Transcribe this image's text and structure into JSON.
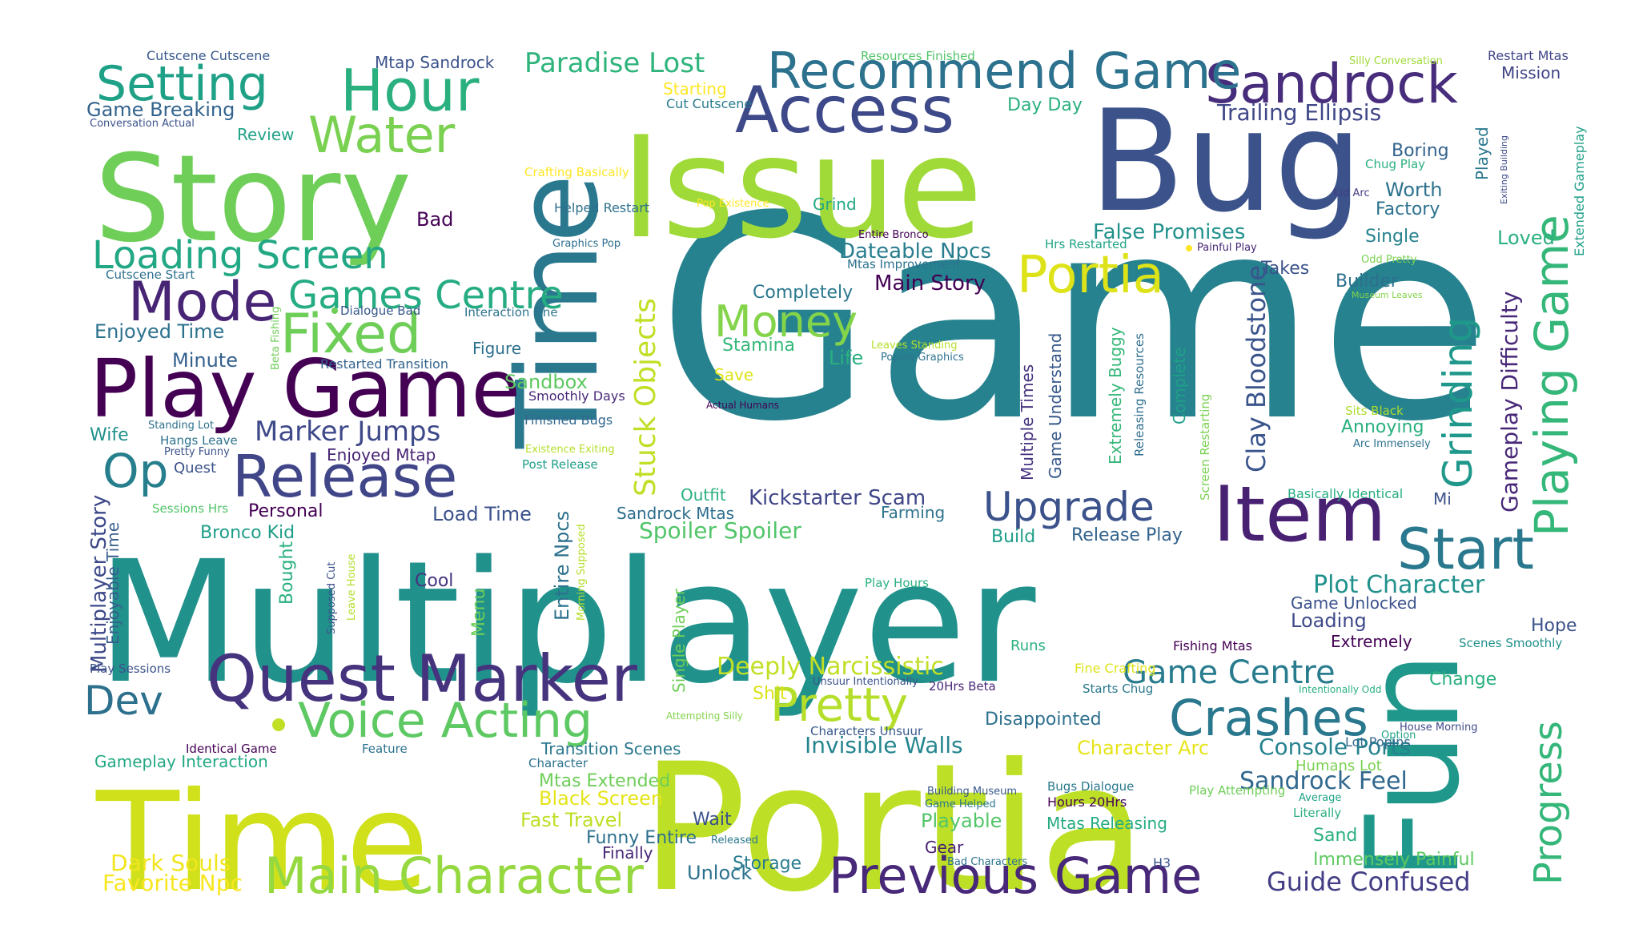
{
  "words": [
    {
      "t": "Game",
      "c": "#26828e"
    },
    {
      "t": "Multiplayer",
      "c": "#21918c"
    },
    {
      "t": "Time",
      "c": "#d0e11c"
    },
    {
      "t": "Portia",
      "c": "#bddf26"
    },
    {
      "t": "Story",
      "c": "#6ece58"
    },
    {
      "t": "Issue",
      "c": "#a0da39"
    },
    {
      "t": "Bug",
      "c": "#3b528b"
    },
    {
      "t": "Time",
      "c": "#2a788e"
    },
    {
      "t": "Fun",
      "c": "#1f988b"
    },
    {
      "t": "Play Game",
      "c": "#440154"
    },
    {
      "t": "Item",
      "c": "#482173"
    },
    {
      "t": "Quest Marker",
      "c": "#46337e"
    },
    {
      "t": "Access",
      "c": "#3e4989"
    },
    {
      "t": "Sandrock",
      "c": "#472d7b"
    },
    {
      "t": "Recommend Game",
      "c": "#2c728e"
    },
    {
      "t": "Hour",
      "c": "#2ab07f"
    },
    {
      "t": "Setting",
      "c": "#1fa187"
    },
    {
      "t": "Water",
      "c": "#7ad151"
    },
    {
      "t": "Mode",
      "c": "#482475"
    },
    {
      "t": "Fixed",
      "c": "#6ece58"
    },
    {
      "t": "Loading Screen",
      "c": "#22a884"
    },
    {
      "t": "Games Centre",
      "c": "#25ac82"
    },
    {
      "t": "Release",
      "c": "#404688"
    },
    {
      "t": "Op",
      "c": "#277f8e"
    },
    {
      "t": "Dev",
      "c": "#2d708e"
    },
    {
      "t": "Voice Acting",
      "c": "#5ec962"
    },
    {
      "t": "Main Character",
      "c": "#95d840"
    },
    {
      "t": "Previous Game",
      "c": "#482878"
    },
    {
      "t": "Crashes",
      "c": "#2a788e"
    },
    {
      "t": "Pretty",
      "c": "#b5de2b"
    },
    {
      "t": "Portia",
      "c": "#dde318"
    },
    {
      "t": "Money",
      "c": "#84d44b"
    },
    {
      "t": "Upgrade",
      "c": "#3b528b"
    },
    {
      "t": "Start",
      "c": "#2a788e"
    },
    {
      "t": "Grinding",
      "c": "#1f988b"
    },
    {
      "t": "Playing Game",
      "c": "#35b779"
    },
    {
      "t": "Progress",
      "c": "#35b779"
    },
    {
      "t": "Game Centre",
      "c": "#287c8e"
    },
    {
      "t": "Marker Jumps",
      "c": "#3e4989"
    },
    {
      "t": "Paradise Lost",
      "c": "#2fb47c"
    },
    {
      "t": "Trailing Ellipsis",
      "c": "#3f4788"
    },
    {
      "t": "Stuck Objects",
      "c": "#c0df25"
    },
    {
      "t": "Deeply Narcissistic",
      "c": "#c0df25"
    },
    {
      "t": "Kickstarter Scam",
      "c": "#404688"
    },
    {
      "t": "Sandrock Feel",
      "c": "#31688e"
    },
    {
      "t": "Guide Confused",
      "c": "#433e85"
    },
    {
      "t": "Favorite Npc",
      "c": "#f8e621"
    },
    {
      "t": "Dark Souls",
      "c": "#f1e51d"
    },
    {
      "t": "Clay Bloodstone",
      "c": "#3a548c"
    },
    {
      "t": "Gameplay Difficulty",
      "c": "#482878"
    },
    {
      "t": "Plot Character",
      "c": "#21918c"
    },
    {
      "t": "Console Ports",
      "c": "#26828e"
    },
    {
      "t": "Invisible Walls",
      "c": "#25858e"
    },
    {
      "t": "Dateable Npcs",
      "c": "#287d8e"
    },
    {
      "t": "Main Story",
      "c": "#440154"
    },
    {
      "t": "Spoiler Spoiler",
      "c": "#52c569"
    },
    {
      "t": "Multiplayer Story",
      "c": "#3e4989"
    },
    {
      "t": "False Promises",
      "c": "#21918c"
    },
    {
      "t": "Completely",
      "c": "#2a788e"
    },
    {
      "t": "Stamina",
      "c": "#35b779"
    },
    {
      "t": "Sandbox",
      "c": "#5ec962"
    },
    {
      "t": "Black Screen",
      "c": "#e5e419"
    },
    {
      "t": "Fast Travel",
      "c": "#bddf26"
    },
    {
      "t": "Character Arc",
      "c": "#e7e419"
    },
    {
      "t": "Game Understand",
      "c": "#38598c"
    },
    {
      "t": "Multiple Times",
      "c": "#46327e"
    },
    {
      "t": "Extremely Buggy",
      "c": "#35b779"
    },
    {
      "t": "Releasing Resources",
      "c": "#2e6e8e"
    },
    {
      "t": "Complete",
      "c": "#1fa088"
    },
    {
      "t": "Screen Restarting",
      "c": "#7ad151"
    },
    {
      "t": "Game Breaking",
      "c": "#33638d"
    },
    {
      "t": "Enjoyed Time",
      "c": "#2c728e"
    },
    {
      "t": "Enjoyable Time",
      "c": "#365d8d"
    },
    {
      "t": "Bronco Kid",
      "c": "#1f9e89"
    },
    {
      "t": "Entire Npcs",
      "c": "#2c718e"
    },
    {
      "t": "Single Player",
      "c": "#6ece58"
    },
    {
      "t": "Sandrock Mtas",
      "c": "#2e6e8e"
    },
    {
      "t": "Load Time",
      "c": "#3b528b"
    },
    {
      "t": "Release Play",
      "c": "#33638d"
    },
    {
      "t": "Cutscene Cutscene",
      "c": "#38598c"
    },
    {
      "t": "Mtap Sandrock",
      "c": "#3b528b"
    },
    {
      "t": "Resources Finished",
      "c": "#52c569"
    },
    {
      "t": "Restart Mtas",
      "c": "#404688"
    },
    {
      "t": "Mission",
      "c": "#414487"
    },
    {
      "t": "Silly Conversation",
      "c": "#a0da39"
    },
    {
      "t": "Starting",
      "c": "#fde725"
    },
    {
      "t": "Cut Cutscene",
      "c": "#297b8e"
    },
    {
      "t": "Day Day",
      "c": "#2ab07f"
    },
    {
      "t": "Conversation Actual",
      "c": "#3b528b"
    },
    {
      "t": "Review",
      "c": "#20a486"
    },
    {
      "t": "Boring",
      "c": "#33638d"
    },
    {
      "t": "Played",
      "c": "#2a788e"
    },
    {
      "t": "Extended Gameplay",
      "c": "#1fa088"
    },
    {
      "t": "Exiting Building",
      "c": "#3e4c8a"
    },
    {
      "t": "Crafting Basically",
      "c": "#fde725"
    },
    {
      "t": "Helped Restart",
      "c": "#2d708e"
    },
    {
      "t": "Pop Existence",
      "c": "#fde725"
    },
    {
      "t": "Grind",
      "c": "#22a884"
    },
    {
      "t": "Chug Play",
      "c": "#2ab07f"
    },
    {
      "t": "Kid Arc",
      "c": "#433e85"
    },
    {
      "t": "Worth",
      "c": "#2c728e"
    },
    {
      "t": "Factory",
      "c": "#2c728e"
    },
    {
      "t": "Bad",
      "c": "#440154"
    },
    {
      "t": "Entire Bronco",
      "c": "#440154"
    },
    {
      "t": "Hrs Restarted",
      "c": "#20a486"
    },
    {
      "t": "Single",
      "c": "#26828e"
    },
    {
      "t": "Loved",
      "c": "#2ab07f"
    },
    {
      "t": "Graphics Pop",
      "c": "#2e6e8e"
    },
    {
      "t": "Painful Play",
      "c": "#482878"
    },
    {
      "t": "Mtas Improvement",
      "c": "#2c728e"
    },
    {
      "t": "Takes",
      "c": "#3b528b"
    },
    {
      "t": "Odd Pretty",
      "c": "#7ad151"
    },
    {
      "t": "Cutscene Start",
      "c": "#2d708e"
    },
    {
      "t": "Dialogue Bad",
      "c": "#38598c"
    },
    {
      "t": "Interaction Fine",
      "c": "#2c728e"
    },
    {
      "t": "Builder",
      "c": "#2d708e"
    },
    {
      "t": "Museum Leaves",
      "c": "#84d44b"
    },
    {
      "t": "Beta Fishing",
      "c": "#6ece58"
    },
    {
      "t": "Figure",
      "c": "#2d708e"
    },
    {
      "t": "Leaves Standing",
      "c": "#b5de2b"
    },
    {
      "t": "Popins Graphics",
      "c": "#2c728e"
    },
    {
      "t": "Minute",
      "c": "#35608d"
    },
    {
      "t": "Restarted Transition",
      "c": "#33638d"
    },
    {
      "t": "Life",
      "c": "#2ab07f"
    },
    {
      "t": "Save",
      "c": "#dde318"
    },
    {
      "t": "Smoothly Days",
      "c": "#482878"
    },
    {
      "t": "Actual Humans",
      "c": "#440154"
    },
    {
      "t": "Finished Bugs",
      "c": "#31688e"
    },
    {
      "t": "Sits Black",
      "c": "#addc30"
    },
    {
      "t": "Annoying",
      "c": "#2ab07f"
    },
    {
      "t": "Arc Immensely",
      "c": "#2c728e"
    },
    {
      "t": "Standing Lot",
      "c": "#2d708e"
    },
    {
      "t": "Hangs Leave",
      "c": "#2c728e"
    },
    {
      "t": "Wife",
      "c": "#21918c"
    },
    {
      "t": "Enjoyed Mtap",
      "c": "#482475"
    },
    {
      "t": "Existence Exiting",
      "c": "#b5de2b"
    },
    {
      "t": "Pretty Funny",
      "c": "#3b528b"
    },
    {
      "t": "Quest",
      "c": "#3b528b"
    },
    {
      "t": "Post Release",
      "c": "#1f9e89"
    },
    {
      "t": "Outfit",
      "c": "#2ab07f"
    },
    {
      "t": "Basically Identical",
      "c": "#25ac82"
    },
    {
      "t": "Mi",
      "c": "#3b528b"
    },
    {
      "t": "Sessions Hrs",
      "c": "#52c569"
    },
    {
      "t": "Personal",
      "c": "#440154"
    },
    {
      "t": "Farming",
      "c": "#2c728e"
    },
    {
      "t": "Build",
      "c": "#1f9e89"
    },
    {
      "t": "Bought",
      "c": "#2ab07f"
    },
    {
      "t": "Supposed Cut",
      "c": "#3b528b"
    },
    {
      "t": "Leave House",
      "c": "#b5de2b"
    },
    {
      "t": "Morning Supposed",
      "c": "#b5de2b"
    },
    {
      "t": "Cool",
      "c": "#46327e"
    },
    {
      "t": "Menu",
      "c": "#6ece58"
    },
    {
      "t": "Play Hours",
      "c": "#2ab07f"
    },
    {
      "t": "Game Unlocked",
      "c": "#3b528b"
    },
    {
      "t": "Loading",
      "c": "#3e4989"
    },
    {
      "t": "Hope",
      "c": "#3b528b"
    },
    {
      "t": "Extremely",
      "c": "#440154"
    },
    {
      "t": "Fishing Mtas",
      "c": "#440154"
    },
    {
      "t": "Scenes Smoothly",
      "c": "#21918c"
    },
    {
      "t": "Runs",
      "c": "#2ab07f"
    },
    {
      "t": "Play Sessions",
      "c": "#3b528b"
    },
    {
      "t": "Unsuur Intentionally",
      "c": "#3b528b"
    },
    {
      "t": "20Hrs Beta",
      "c": "#482878"
    },
    {
      "t": "Starts Chug",
      "c": "#2a788e"
    },
    {
      "t": "Fine Crafting",
      "c": "#dde318"
    },
    {
      "t": "Intentionally Odd",
      "c": "#2ab07f"
    },
    {
      "t": "Change",
      "c": "#2ab07f"
    },
    {
      "t": "Shit",
      "c": "#dde318"
    },
    {
      "t": "Attempting Silly",
      "c": "#84d44b"
    },
    {
      "t": "Disappointed",
      "c": "#2d708e"
    },
    {
      "t": "Characters Unsuur",
      "c": "#38598c"
    },
    {
      "t": "House Morning",
      "c": "#3e4989"
    },
    {
      "t": "Lot Popins",
      "c": "#31688e"
    },
    {
      "t": "Option",
      "c": "#20a486"
    },
    {
      "t": "Gameplay Interaction",
      "c": "#22a884"
    },
    {
      "t": "Identical Game",
      "c": "#440154"
    },
    {
      "t": "Feature",
      "c": "#2c728e"
    },
    {
      "t": "Transition Scenes",
      "c": "#2a788e"
    },
    {
      "t": "Character",
      "c": "#2c728e"
    },
    {
      "t": "Mtas Extended",
      "c": "#6ece58"
    },
    {
      "t": "Humans Lot",
      "c": "#7ad151"
    },
    {
      "t": "Building Museum",
      "c": "#38598c"
    },
    {
      "t": "Game Helped",
      "c": "#2a788e"
    },
    {
      "t": "Bugs Dialogue",
      "c": "#2a788e"
    },
    {
      "t": "Hours 20Hrs",
      "c": "#440154"
    },
    {
      "t": "Play Attempting",
      "c": "#6ece58"
    },
    {
      "t": "Average",
      "c": "#20a486"
    },
    {
      "t": "Wait",
      "c": "#3b528b"
    },
    {
      "t": "Playable",
      "c": "#52c569"
    },
    {
      "t": "Mtas Releasing",
      "c": "#25ac82"
    },
    {
      "t": "Literally",
      "c": "#2ab07f"
    },
    {
      "t": "Sand",
      "c": "#2ab07f"
    },
    {
      "t": "Funny Entire",
      "c": "#2d708e"
    },
    {
      "t": "Released",
      "c": "#2a788e"
    },
    {
      "t": "Gear",
      "c": "#481f70"
    },
    {
      "t": "Finally",
      "c": "#482878"
    },
    {
      "t": "Immensely Painful",
      "c": "#5ec962"
    },
    {
      "t": "Bad Characters",
      "c": "#2c728e"
    },
    {
      "t": "H3",
      "c": "#3b528b"
    },
    {
      "t": "Unlock",
      "c": "#2c728e"
    },
    {
      "t": "Storage",
      "c": "#287c8e"
    }
  ]
}
